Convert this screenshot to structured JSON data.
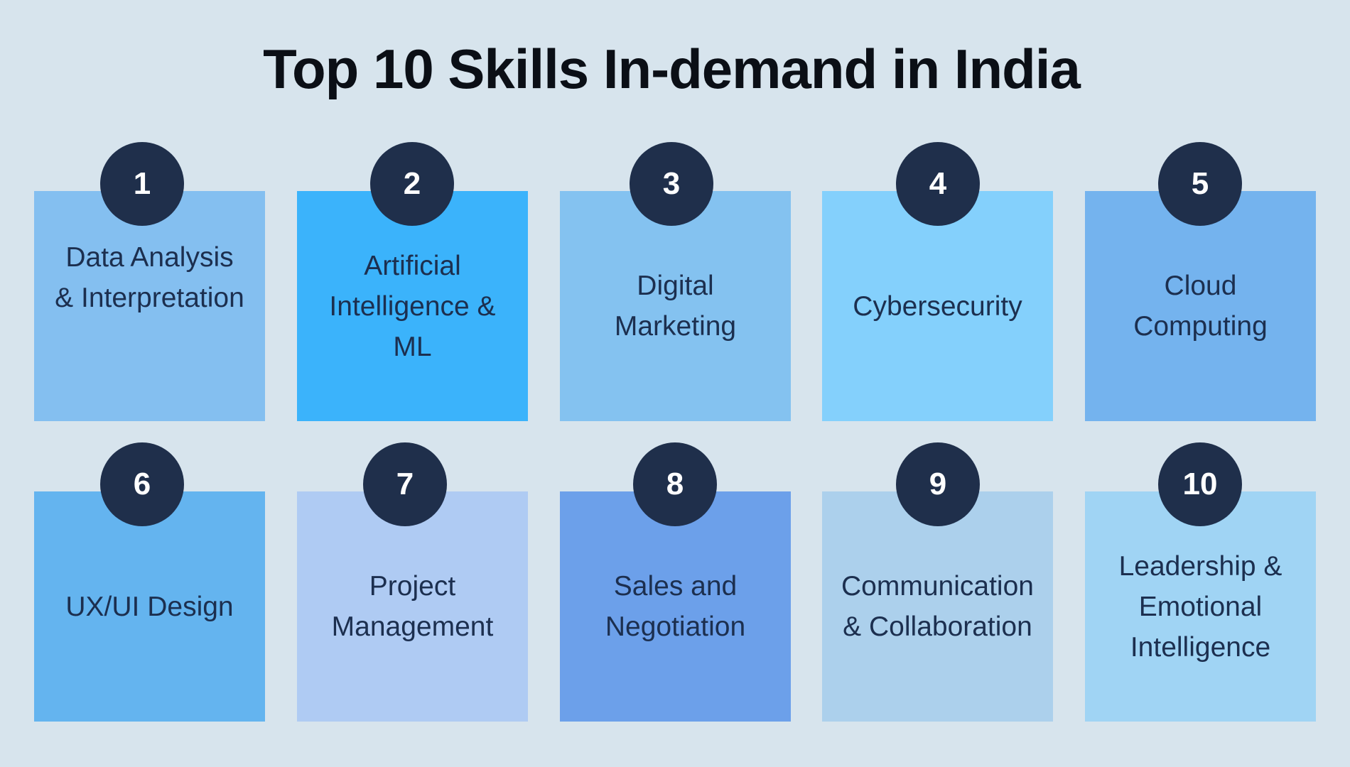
{
  "title": "Top 10 Skills In-demand in India",
  "skills": [
    {
      "rank": "1",
      "label": "Data Analysis\n& Interpretation",
      "color": "#84bff0"
    },
    {
      "rank": "2",
      "label": "Artificial\nIntelligence &\nML",
      "color": "#3bb3fb"
    },
    {
      "rank": "3",
      "label": "Digital\nMarketing",
      "color": "#84c2f0"
    },
    {
      "rank": "4",
      "label": "Cybersecurity",
      "color": "#84d0fc"
    },
    {
      "rank": "5",
      "label": "Cloud\nComputing",
      "color": "#74b3ee"
    },
    {
      "rank": "6",
      "label": "UX/UI Design",
      "color": "#64b4ef"
    },
    {
      "rank": "7",
      "label": "Project\nManagement",
      "color": "#afcbf3"
    },
    {
      "rank": "8",
      "label": "Sales and\nNegotiation",
      "color": "#6ca0ea"
    },
    {
      "rank": "9",
      "label": "Communication\n& Collaboration",
      "color": "#acd0ec"
    },
    {
      "rank": "10",
      "label": "Leadership &\nEmotional\nIntelligence",
      "color": "#a0d4f4"
    }
  ],
  "badge_color": "#1f2f4b"
}
